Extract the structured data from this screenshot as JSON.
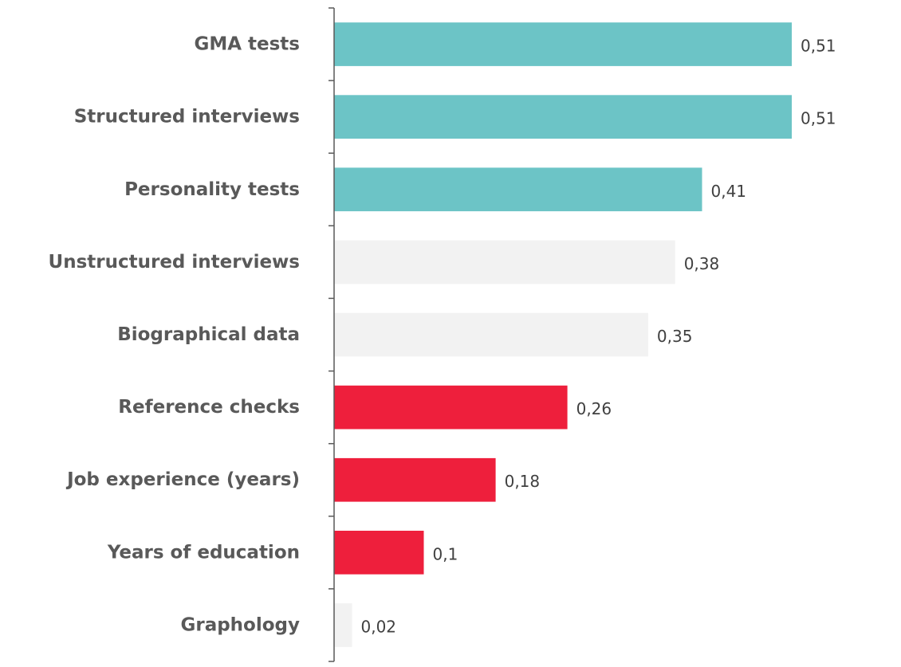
{
  "chart_data": {
    "type": "bar",
    "orientation": "horizontal",
    "categories": [
      "GMA tests",
      "Structured interviews",
      "Personality tests",
      "Unstructured interviews",
      "Biographical data",
      "Reference checks",
      "Job experience (years)",
      "Years of education",
      "Graphology"
    ],
    "values": [
      0.51,
      0.51,
      0.41,
      0.38,
      0.35,
      0.26,
      0.18,
      0.1,
      0.02
    ],
    "value_labels": [
      "0,51",
      "0,51",
      "0,41",
      "0,38",
      "0,35",
      "0,26",
      "0,18",
      "0,1",
      "0,02"
    ],
    "bar_colors": [
      "#6cc4c6",
      "#6cc4c6",
      "#6cc4c6",
      "#f2f2f2",
      "#f2f2f2",
      "#ee1f3c",
      "#ee1f3c",
      "#ee1f3c",
      "#f2f2f2"
    ],
    "xlim": [
      0,
      0.51
    ],
    "grid": false,
    "legend": "none",
    "axis_color": "#595959",
    "label_color": "#595959",
    "value_label_color": "#404040"
  }
}
